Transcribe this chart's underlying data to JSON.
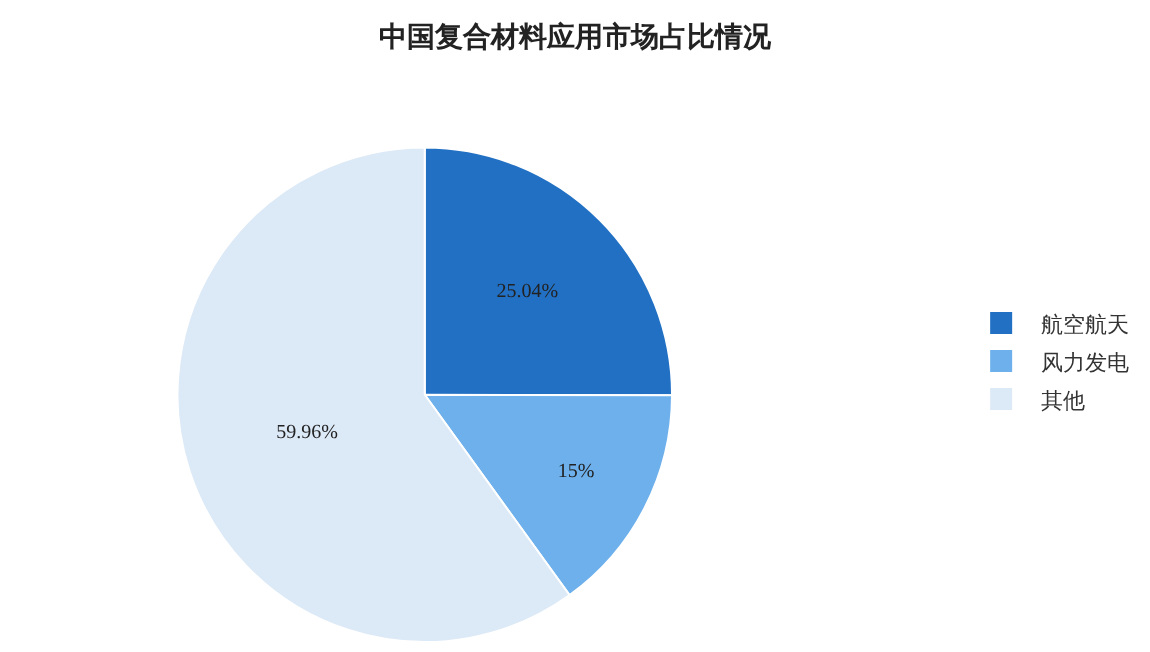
{
  "chart_data": {
    "type": "pie",
    "title": "中国复合材料应用市场占比情况",
    "categories": [
      "航空航天",
      "风力发电",
      "其他"
    ],
    "values": [
      25.04,
      15,
      59.96
    ],
    "value_labels": [
      "25.04%",
      "15%",
      "59.96%"
    ],
    "colors": [
      "#2170c4",
      "#6db0ec",
      "#dce9f7"
    ],
    "legend": "right"
  }
}
